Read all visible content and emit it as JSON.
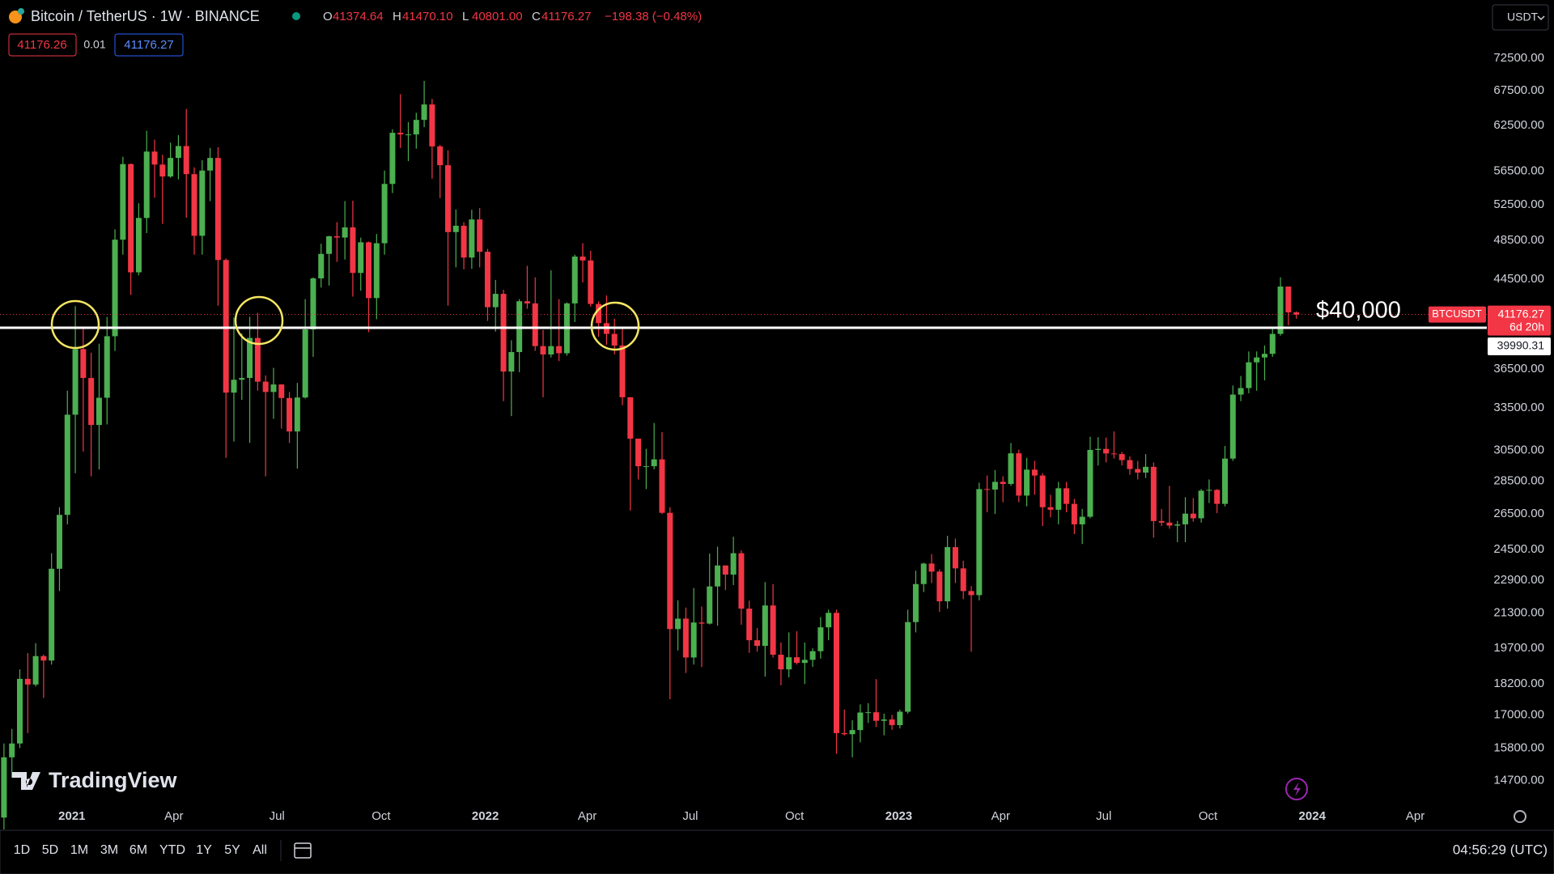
{
  "header": {
    "title": "Bitcoin / TetherUS · 1W · BINANCE",
    "ohlc": [
      {
        "letter": "O",
        "value": 41374.64
      },
      {
        "letter": "H",
        "value": 41470.1,
        "label": "41470.10"
      },
      {
        "letter": "L",
        "value": 40801,
        "label": "40801.00"
      },
      {
        "letter": "C",
        "value": 41176.27
      }
    ],
    "change": "−198.38 (−0.48%)",
    "quote": {
      "bid": 41176.26,
      "spread": 0.01,
      "ask": 41176.27
    },
    "currency": "USDT"
  },
  "chart_data": {
    "type": "candlestick",
    "log_scale": true,
    "grid": false,
    "up_color": "#4caf50",
    "down_color": "#f23645",
    "open": [
      13550,
      15480,
      15960,
      18410,
      18180,
      19360,
      19170,
      23480,
      26450,
      33000,
      38150,
      35790,
      32260,
      34260,
      39250,
      48580,
      57410,
      45200,
      50970,
      59020,
      57350,
      55860,
      58200,
      59750,
      56150,
      49000,
      56600,
      58200,
      46450,
      34650,
      35650,
      35790,
      39100,
      35500,
      34700,
      35280,
      34240,
      31800,
      34280,
      39850,
      44600,
      47080,
      48950,
      48810,
      49920,
      45140,
      48300,
      42700,
      48200,
      54950,
      61520,
      61300,
      61300,
      63300,
      65500,
      59700,
      57270,
      49400,
      50100,
      46700,
      50800,
      47300,
      41850,
      43100,
      36300,
      37900,
      42400,
      42200,
      38400,
      37700,
      38400,
      37800,
      42200,
      46800,
      46400,
      42150,
      40400,
      39450,
      38450,
      34300,
      31300,
      29450,
      29450,
      29900,
      26570,
      20550,
      21030,
      19300,
      20850,
      20800,
      22580,
      23650,
      23180,
      24300,
      21500,
      20050,
      19800,
      21650,
      19420,
      18800,
      19310,
      19070,
      19200,
      19570,
      20630,
      21300,
      16330,
      16290,
      16440,
      17090,
      17100,
      16780,
      16830,
      16620,
      17120,
      20870,
      22700,
      23750,
      23330,
      21850,
      24630,
      23500,
      22350,
      22150,
      28000,
      27970,
      28450,
      28320,
      30300,
      27600,
      29230,
      28850,
      26900,
      26750,
      28050,
      27100,
      25900,
      26340,
      30530,
      30600,
      30290,
      30250,
      29850,
      29270,
      29040,
      29410,
      26090,
      26000,
      25830,
      25900,
      26520,
      26250,
      27900,
      27950,
      27100,
      29950,
      34500,
      35000,
      37050,
      37450,
      37750,
      39450,
      43800,
      41374.64
    ],
    "high": [
      15960,
      16480,
      18800,
      19490,
      19920,
      19420,
      24300,
      26900,
      34800,
      41950,
      40100,
      37850,
      38600,
      40950,
      49700,
      58350,
      57500,
      52650,
      61800,
      60600,
      58600,
      60200,
      61200,
      64850,
      57000,
      57900,
      59500,
      59600,
      46600,
      40900,
      39500,
      40980,
      41330,
      36000,
      36600,
      35300,
      34700,
      35400,
      42600,
      44700,
      48150,
      49000,
      50500,
      52900,
      52950,
      48800,
      48380,
      49200,
      56600,
      62000,
      67000,
      63000,
      64300,
      69000,
      66300,
      59900,
      59180,
      51950,
      50500,
      51900,
      52100,
      47600,
      44450,
      43500,
      38900,
      42600,
      45850,
      44700,
      39800,
      45400,
      42600,
      42300,
      47000,
      48200,
      47400,
      42400,
      42950,
      40800,
      40000,
      34300,
      31300,
      30600,
      32400,
      31750,
      26900,
      21900,
      21550,
      22500,
      21600,
      24280,
      24650,
      23650,
      25200,
      24450,
      21880,
      20600,
      22800,
      22700,
      19950,
      20400,
      20450,
      19950,
      19700,
      21100,
      21450,
      21450,
      17200,
      16800,
      17400,
      17450,
      18400,
      17050,
      17000,
      17200,
      21450,
      23380,
      23800,
      24250,
      23450,
      25250,
      25100,
      23900,
      22600,
      28400,
      28850,
      29200,
      28800,
      31000,
      30550,
      30000,
      29800,
      29000,
      27650,
      28450,
      28450,
      27400,
      26800,
      31430,
      31400,
      31380,
      31800,
      30400,
      30100,
      29800,
      30250,
      29700,
      26800,
      28200,
      26100,
      27500,
      27450,
      28000,
      28600,
      28000,
      30800,
      35200,
      35950,
      37950,
      37950,
      38450,
      40000,
      44700,
      43800,
      41470.1
    ],
    "low": [
      13200,
      14800,
      15800,
      16330,
      18100,
      17650,
      19000,
      22350,
      25900,
      29000,
      30420,
      28800,
      29240,
      32300,
      37990,
      47000,
      43000,
      44900,
      49300,
      53300,
      50300,
      55700,
      55500,
      51000,
      47000,
      47000,
      52900,
      42000,
      30000,
      31100,
      34100,
      31000,
      34800,
      28800,
      32700,
      32000,
      31000,
      29300,
      34200,
      37500,
      43700,
      43900,
      46250,
      46500,
      42840,
      43400,
      39600,
      40750,
      47000,
      53850,
      59500,
      57800,
      59400,
      62300,
      55600,
      53250,
      42000,
      45700,
      45500,
      45550,
      45700,
      40600,
      39650,
      34000,
      32900,
      36250,
      41700,
      38000,
      34300,
      37450,
      37150,
      37600,
      40500,
      44200,
      41900,
      39200,
      38500,
      37700,
      33700,
      26700,
      28600,
      28000,
      29250,
      26500,
      17600,
      19600,
      18650,
      19000,
      18900,
      20760,
      20700,
      22400,
      22650,
      20750,
      19500,
      19550,
      18500,
      19300,
      18150,
      18470,
      19000,
      18200,
      18900,
      19250,
      20050,
      15600,
      16250,
      15480,
      16000,
      16700,
      16550,
      16250,
      16450,
      16500,
      17050,
      20400,
      22300,
      22750,
      21350,
      21500,
      22750,
      21950,
      19550,
      21900,
      26600,
      26500,
      27200,
      28200,
      27200,
      26950,
      27650,
      25800,
      26300,
      25900,
      26600,
      25350,
      24800,
      26250,
      29500,
      29700,
      29950,
      29500,
      28900,
      28600,
      28700,
      25150,
      25800,
      25650,
      24900,
      24900,
      26050,
      26000,
      27150,
      26550,
      26950,
      29800,
      34000,
      34600,
      34800,
      35600,
      37500,
      39300,
      40200,
      40801
    ],
    "close": [
      15480,
      15960,
      18410,
      18180,
      19360,
      19170,
      23480,
      26450,
      33000,
      38150,
      35790,
      32260,
      34260,
      39250,
      48580,
      57410,
      45200,
      50970,
      59020,
      57350,
      55860,
      58200,
      59750,
      56150,
      49000,
      56600,
      58200,
      46450,
      34650,
      35650,
      35790,
      39100,
      35500,
      34700,
      35280,
      34240,
      31800,
      34280,
      39850,
      44600,
      47080,
      48950,
      48810,
      49920,
      45140,
      48300,
      42700,
      48200,
      54950,
      61520,
      61300,
      61300,
      63300,
      65500,
      59700,
      57270,
      49400,
      50100,
      46700,
      50800,
      47300,
      41850,
      43100,
      36300,
      37900,
      42400,
      42200,
      38400,
      37700,
      38400,
      37800,
      42200,
      46800,
      46400,
      42150,
      40400,
      39450,
      38450,
      34300,
      31300,
      29450,
      29450,
      29900,
      26570,
      20550,
      21030,
      19300,
      20850,
      20800,
      22580,
      23650,
      23180,
      24300,
      21500,
      20050,
      19800,
      21650,
      19420,
      18800,
      19310,
      19070,
      19200,
      19570,
      20630,
      21300,
      16330,
      16290,
      16440,
      17090,
      17100,
      16780,
      16830,
      16620,
      17120,
      20870,
      22700,
      23750,
      23330,
      21850,
      24630,
      23500,
      22350,
      22150,
      28000,
      27970,
      28450,
      28320,
      30300,
      27600,
      29230,
      28850,
      26900,
      26750,
      28050,
      27100,
      25900,
      26340,
      30530,
      30600,
      30290,
      30250,
      29850,
      29270,
      29040,
      29410,
      26090,
      26000,
      25830,
      25900,
      26520,
      26250,
      27900,
      27950,
      27100,
      29950,
      34500,
      35000,
      37050,
      37450,
      37750,
      39450,
      43800,
      41374.64,
      41176.27
    ],
    "ylim": [
      14000,
      82500
    ],
    "yticks": [
      {
        "value": 72500,
        "label": "72500.00"
      },
      {
        "value": 67500,
        "label": "67500.00"
      },
      {
        "value": 62500,
        "label": "62500.00"
      },
      {
        "value": 56500,
        "label": "56500.00"
      },
      {
        "value": 52500,
        "label": "52500.00"
      },
      {
        "value": 48500,
        "label": "48500.00"
      },
      {
        "value": 44500,
        "label": "44500.00"
      },
      {
        "value": 36500,
        "label": "36500.00"
      },
      {
        "value": 33500,
        "label": "33500.00"
      },
      {
        "value": 30500,
        "label": "30500.00"
      },
      {
        "value": 28500,
        "label": "28500.00"
      },
      {
        "value": 26500,
        "label": "26500.00"
      },
      {
        "value": 24500,
        "label": "24500.00"
      },
      {
        "value": 22900,
        "label": "22900.00"
      },
      {
        "value": 21300,
        "label": "21300.00"
      },
      {
        "value": 19700,
        "label": "19700.00"
      },
      {
        "value": 18200,
        "label": "18200.00"
      },
      {
        "value": 17000,
        "label": "17000.00"
      },
      {
        "value": 15800,
        "label": "15800.00"
      },
      {
        "value": 14700,
        "label": "14700.00"
      }
    ],
    "xticks": [
      {
        "value": 8.57,
        "label": "2021"
      },
      {
        "value": 21.43,
        "label": "Apr"
      },
      {
        "value": 34.43,
        "label": "Jul"
      },
      {
        "value": 47.57,
        "label": "Oct"
      },
      {
        "value": 60.71,
        "label": "2022"
      },
      {
        "value": 73.57,
        "label": "Apr"
      },
      {
        "value": 86.57,
        "label": "Jul"
      },
      {
        "value": 99.71,
        "label": "Oct"
      },
      {
        "value": 112.86,
        "label": "2023"
      },
      {
        "value": 125.71,
        "label": "Apr"
      },
      {
        "value": 138.71,
        "label": "Jul"
      },
      {
        "value": 151.86,
        "label": "Oct"
      },
      {
        "value": 165,
        "label": "2024"
      },
      {
        "value": 178,
        "label": "Apr"
      }
    ],
    "hline": {
      "value": 39990.31,
      "color": "#ffffff",
      "annotation": "$40,000"
    },
    "price_label": {
      "symbol": "BTCUSDT",
      "countdown": "6d 20h"
    }
  },
  "watermark": "TradingView",
  "toolbar": {
    "ranges": [
      "1D",
      "5D",
      "1M",
      "3M",
      "6M",
      "YTD",
      "1Y",
      "5Y",
      "All"
    ],
    "clock": "04:56:29 (UTC)"
  }
}
